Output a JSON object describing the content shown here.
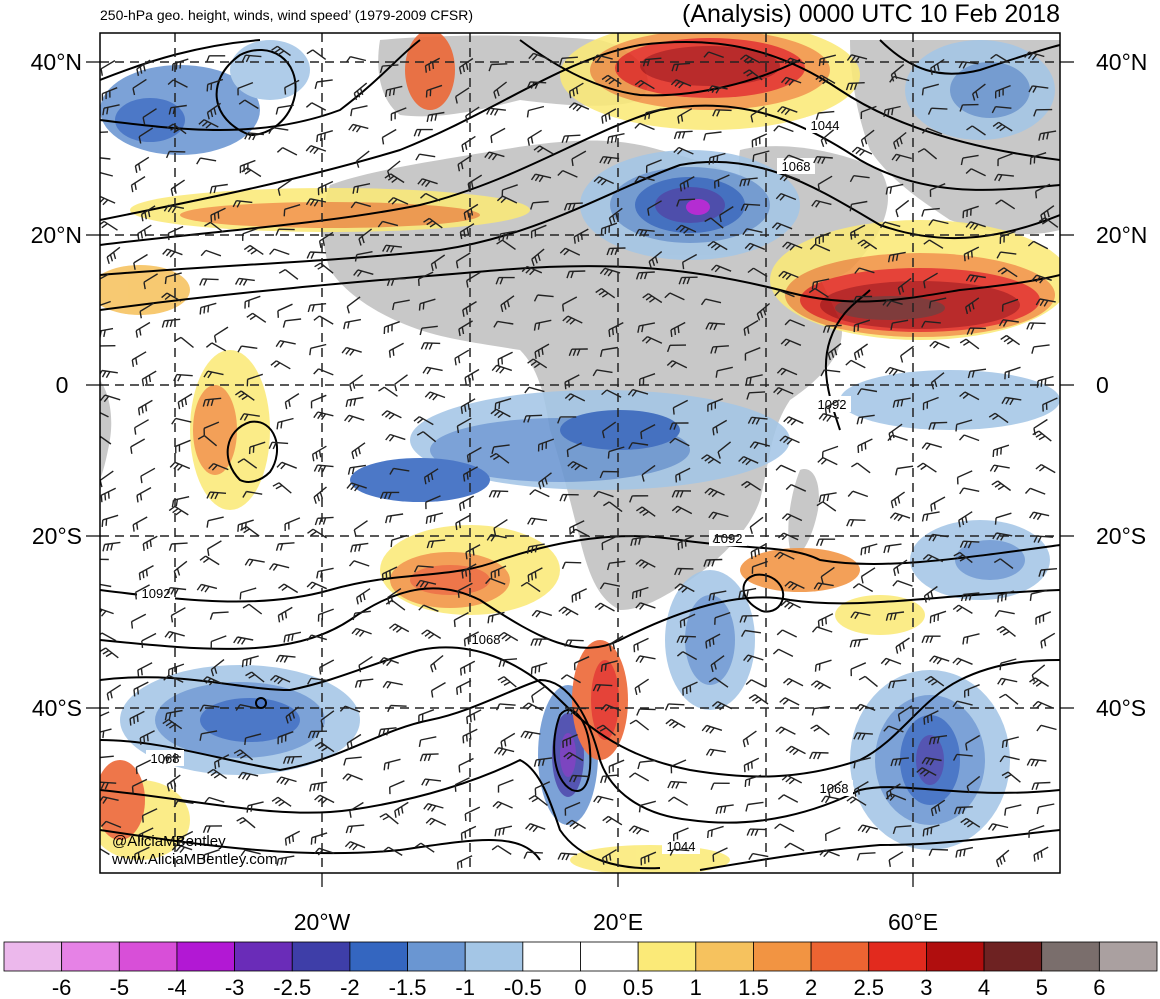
{
  "header": {
    "left_title": "250-hPa geo. height, winds, wind speed’ (1979-2009 CFSR)",
    "right_title": "(Analysis) 0000 UTC 10 Feb 2018"
  },
  "axes": {
    "lat_labels": [
      "40°N",
      "20°N",
      "0",
      "20°S",
      "40°S"
    ],
    "lon_labels": [
      "20°W",
      "20°E",
      "60°E"
    ]
  },
  "contour_labels": [
    "1044",
    "1068",
    "1092",
    "1092",
    "1092",
    "1068",
    "1068",
    "1068",
    "1044"
  ],
  "credit": {
    "handle": "@AliciaMBentley",
    "site": "www.AliciaMBentley.com"
  },
  "colorbar": {
    "labels": [
      "-6",
      "-5",
      "-4",
      "-3",
      "-2.5",
      "-2",
      "-1.5",
      "-1",
      "-0.5",
      "0",
      "0.5",
      "1",
      "1.5",
      "2",
      "2.5",
      "3",
      "4",
      "5",
      "6"
    ],
    "colors": [
      "#ecb8ec",
      "#e682e6",
      "#d84fd8",
      "#b218d4",
      "#6a2cb8",
      "#3e3ea8",
      "#3466c0",
      "#6a96d2",
      "#a4c6e6",
      "#ffffff",
      "#ffffff",
      "#fbea78",
      "#f6c25e",
      "#f29442",
      "#ec6432",
      "#e22a1e",
      "#b00e0e",
      "#6e2222",
      "#7a6e6c",
      "#aaa0a0"
    ]
  }
}
